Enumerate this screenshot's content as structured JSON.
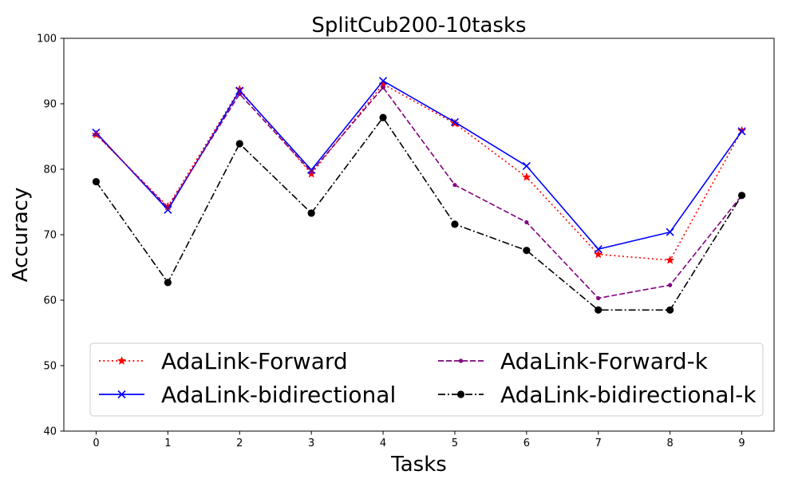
{
  "chart_data": {
    "type": "line",
    "title": "SplitCub200-10tasks",
    "xlabel": "Tasks",
    "ylabel": "Accuracy",
    "x": [
      0,
      1,
      2,
      3,
      4,
      5,
      6,
      7,
      8,
      9
    ],
    "xlim": [
      -0.45,
      9.45
    ],
    "ylim": [
      40,
      100
    ],
    "yticks": [
      40,
      50,
      60,
      70,
      80,
      90,
      100
    ],
    "grid": false,
    "legend_position": "lower center, 2 columns",
    "series": [
      {
        "name": "AdaLink-Forward",
        "color": "#ff0000",
        "line_style": "dotted",
        "marker": "star",
        "values": [
          85.3,
          74.3,
          92.2,
          79.3,
          93.0,
          87.0,
          78.8,
          67.0,
          66.1,
          85.9
        ]
      },
      {
        "name": "AdaLink-bidirectional",
        "color": "#0000ff",
        "line_style": "solid",
        "marker": "x",
        "values": [
          85.6,
          73.8,
          92.0,
          79.9,
          93.5,
          87.2,
          80.5,
          67.8,
          70.4,
          85.8
        ]
      },
      {
        "name": "AdaLink-Forward-k",
        "color": "#800080",
        "line_style": "dashed",
        "marker": "small-dot",
        "values": [
          85.4,
          74.1,
          91.5,
          79.6,
          92.5,
          77.6,
          71.9,
          60.3,
          62.3,
          76.0
        ]
      },
      {
        "name": "AdaLink-bidirectional-k",
        "color": "#000000",
        "line_style": "dash-dot",
        "marker": "circle",
        "values": [
          78.1,
          62.7,
          83.9,
          73.3,
          87.9,
          71.6,
          67.6,
          58.5,
          58.5,
          76.0
        ]
      }
    ]
  }
}
